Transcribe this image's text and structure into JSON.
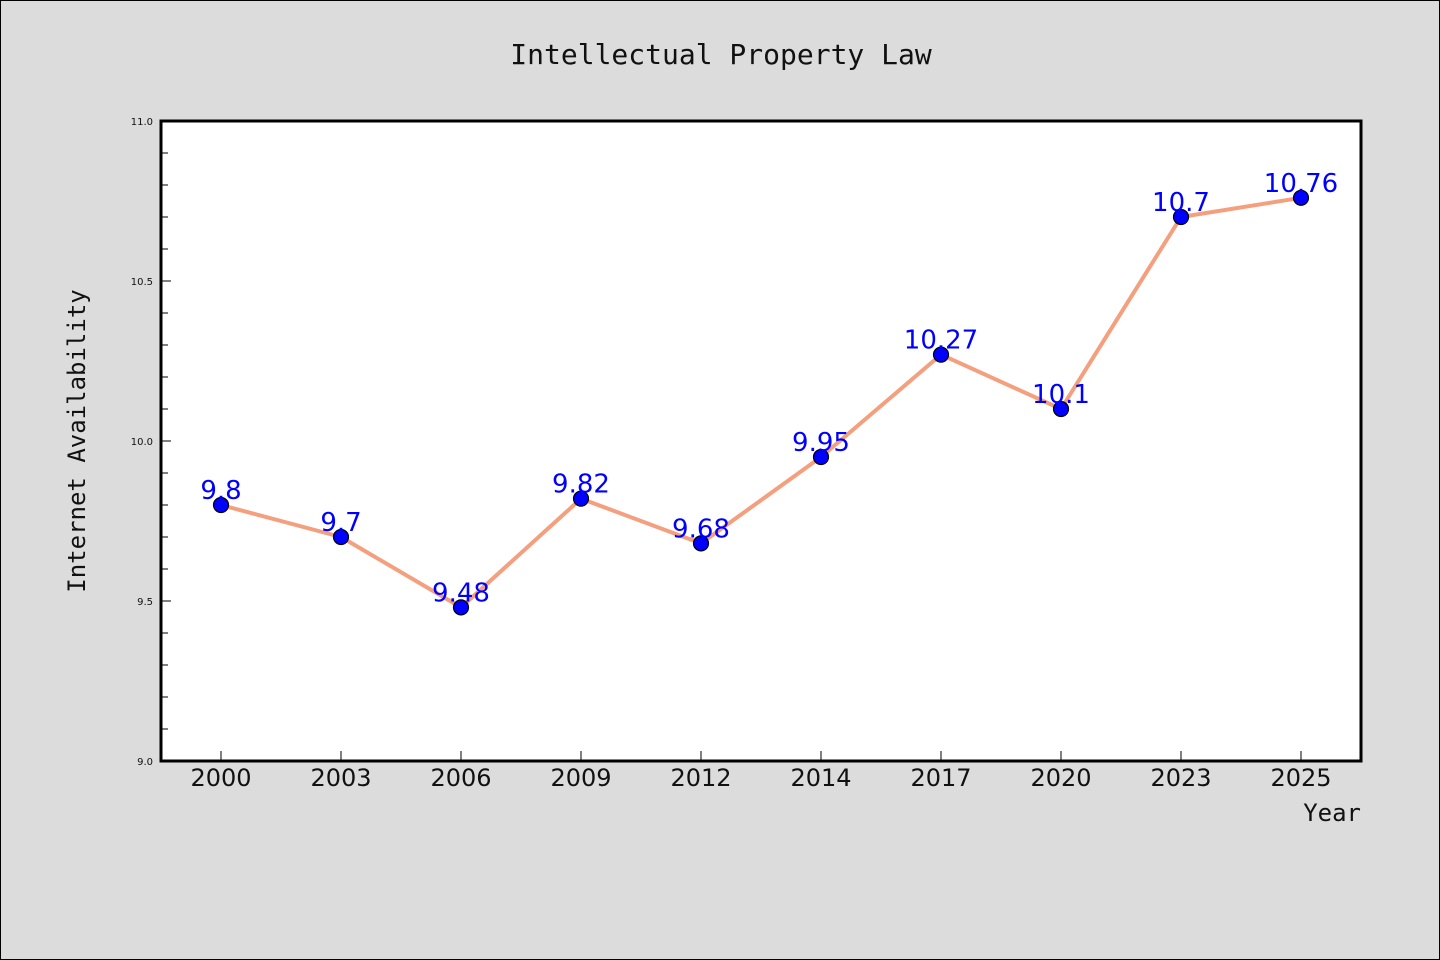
{
  "chart_data": {
    "type": "line",
    "title": "Intellectual Property Law",
    "xlabel": "Year",
    "ylabel": "Internet Availability",
    "categories": [
      "2000",
      "2003",
      "2006",
      "2009",
      "2012",
      "2014",
      "2017",
      "2020",
      "2023",
      "2025"
    ],
    "series": [
      {
        "values": [
          9.8,
          9.7,
          9.48,
          9.82,
          9.68,
          9.95,
          10.27,
          10.1,
          10.7,
          10.76
        ]
      }
    ],
    "data_labels": [
      "9.8",
      "9.7",
      "9.48",
      "9.82",
      "9.68",
      "9.95",
      "10.27",
      "10.1",
      "10.7",
      "10.76"
    ],
    "ylim": [
      9.0,
      11.0
    ],
    "yticks": [
      "9.0",
      "9.5",
      "10.0",
      "10.5",
      "11.0"
    ],
    "grid": false,
    "colors": {
      "line": "#f4a07e",
      "marker": "#0000ff",
      "marker_edge": "#000000",
      "data_label": "#0000ff",
      "plot_background": "#ffffff",
      "figure_background": "#dcdcdc"
    }
  }
}
